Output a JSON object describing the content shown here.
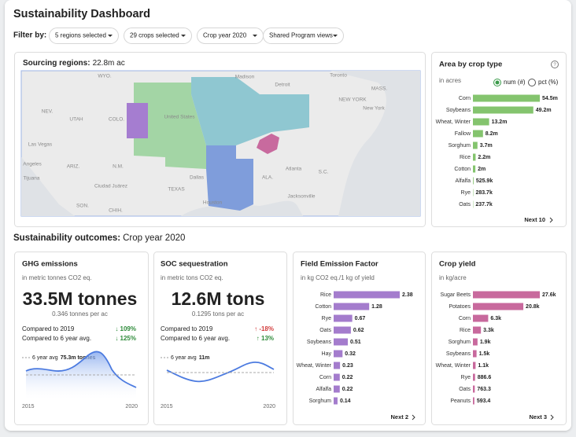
{
  "header": {
    "title": "Sustainability Dashboard",
    "filter_label": "Filter by:",
    "filters": [
      "5 regions selected",
      "29 crops selected",
      "Crop year 2020",
      "Shared Program views"
    ]
  },
  "map": {
    "title": "Sourcing regions:",
    "value": "22.8m ac",
    "places": [
      "WYO.",
      "Madison",
      "Detroit",
      "Toronto",
      "MASS.",
      "NEW YORK",
      "New York",
      "NEV.",
      "UTAH",
      "COLO.",
      "United States",
      "Las Vegas",
      "ARIZ.",
      "N.M.",
      "Angeles",
      "Tijuana",
      "Ciudad Juárez",
      "TEXAS",
      "Dallas",
      "Houston",
      "Atlanta",
      "S.C.",
      "ALA.",
      "Jacksonville",
      "SON.",
      "CHIH."
    ]
  },
  "area_by_crop": {
    "title": "Area by crop type",
    "units": "in acres",
    "options": [
      "num (#)",
      "pct (%)"
    ],
    "color": "#84c46e",
    "categories": [
      "Corn",
      "Soybeans",
      "Wheat, Winter",
      "Fallow",
      "Sorghum",
      "Rice",
      "Cotton",
      "Alfalfa",
      "Rye",
      "Oats"
    ],
    "values": [
      54500000,
      49200000,
      13200000,
      8200000,
      3700000,
      2200000,
      2000000,
      525900,
      283700,
      237700
    ],
    "value_labels": [
      "54.5m",
      "49.2m",
      "13.2m",
      "8.2m",
      "3.7m",
      "2.2m",
      "2m",
      "525.9k",
      "283.7k",
      "237.7k"
    ],
    "next": "Next 10"
  },
  "outcomes": {
    "title": "Sustainability outcomes:",
    "subtitle": "Crop year 2020"
  },
  "ghg": {
    "title": "GHG emissions",
    "units": "in metric tonnes CO2 eq.",
    "big": "33.5M tonnes",
    "sub": "0.346 tonnes per ac",
    "comparisons": [
      {
        "label": "Compared to 2019",
        "change": "↓ 109%",
        "color": "#2e8b3a"
      },
      {
        "label": "Compared to 6 year avg.",
        "change": "↓ 125%",
        "color": "#2e8b3a"
      }
    ],
    "avg_label": "6 year avg",
    "avg_value": "75.3m tonnes",
    "x_labels": [
      "2015",
      "2020"
    ]
  },
  "soc": {
    "title": "SOC sequestration",
    "units": "in metric tons CO2 eq.",
    "big": "12.6M tons",
    "sub": "0.1295 tons per ac",
    "comparisons": [
      {
        "label": "Compared to 2019",
        "change": "↑ -18%",
        "color": "#d23c3c"
      },
      {
        "label": "Compared to 6 year avg.",
        "change": "↑ 13%",
        "color": "#2e8b3a"
      }
    ],
    "avg_label": "6 year avg",
    "avg_value": "11m",
    "x_labels": [
      "2015",
      "2020"
    ]
  },
  "emission": {
    "title": "Field Emission Factor",
    "units": "in kg CO2 eq./1 kg of yield",
    "color": "#a47ccd",
    "categories": [
      "Rice",
      "Cotton",
      "Rye",
      "Oats",
      "Soybeans",
      "Hay",
      "Wheat, Winter",
      "Corn",
      "Alfalfa",
      "Sorghum"
    ],
    "values": [
      2.38,
      1.28,
      0.67,
      0.62,
      0.51,
      0.32,
      0.23,
      0.22,
      0.22,
      0.14
    ],
    "next": "Next 2"
  },
  "yield": {
    "title": "Crop yield",
    "units": "in kg/acre",
    "color": "#c8699d",
    "categories": [
      "Sugar Beets",
      "Potatoes",
      "Corn",
      "Rice",
      "Sorghum",
      "Soybeans",
      "Wheat, Winter",
      "Rye",
      "Oats",
      "Peanuts"
    ],
    "values": [
      27600,
      20800,
      6300,
      3300,
      1900,
      1500,
      1100,
      886.6,
      763.3,
      593.4
    ],
    "value_labels": [
      "27.6k",
      "20.8k",
      "6.3k",
      "3.3k",
      "1.9k",
      "1.5k",
      "1.1k",
      "886.6",
      "763.3",
      "593.4"
    ],
    "next": "Next 3"
  }
}
